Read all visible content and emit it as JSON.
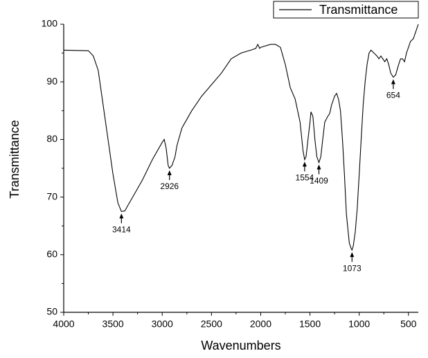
{
  "chart_data": {
    "type": "line",
    "xlabel": "Wavenumbers",
    "ylabel": "Transmittance",
    "xlim": [
      4000,
      400
    ],
    "ylim": [
      50,
      100
    ],
    "xticks": [
      4000,
      3500,
      3000,
      2500,
      2000,
      1500,
      1000,
      500
    ],
    "yticks": [
      50,
      60,
      70,
      80,
      90,
      100
    ],
    "legend": "top-right",
    "series": [
      {
        "name": "Transmittance",
        "color": "#000000",
        "x": [
          4000,
          3750,
          3700,
          3650,
          3600,
          3550,
          3500,
          3450,
          3414,
          3380,
          3350,
          3300,
          3200,
          3100,
          3000,
          2980,
          2960,
          2940,
          2926,
          2900,
          2870,
          2850,
          2800,
          2750,
          2700,
          2600,
          2500,
          2400,
          2300,
          2200,
          2100,
          2050,
          2030,
          2010,
          2000,
          1900,
          1850,
          1800,
          1750,
          1700,
          1650,
          1600,
          1570,
          1554,
          1540,
          1520,
          1500,
          1490,
          1470,
          1450,
          1430,
          1409,
          1390,
          1370,
          1350,
          1320,
          1300,
          1280,
          1250,
          1230,
          1210,
          1190,
          1170,
          1150,
          1130,
          1100,
          1080,
          1073,
          1060,
          1040,
          1020,
          1000,
          980,
          960,
          940,
          920,
          900,
          880,
          850,
          820,
          800,
          780,
          760,
          740,
          720,
          700,
          680,
          654,
          630,
          600,
          580,
          560,
          540,
          520,
          500,
          480,
          450,
          420,
          400
        ],
        "values": [
          95.5,
          95.4,
          94.5,
          92,
          86,
          80,
          74,
          69,
          67.5,
          67.6,
          68.5,
          70,
          73,
          76.5,
          79.5,
          80,
          78.5,
          75.5,
          75,
          75.5,
          77,
          79,
          82,
          83.5,
          85,
          87.5,
          89.5,
          91.5,
          94,
          95,
          95.5,
          95.8,
          96.5,
          95.8,
          96,
          96.5,
          96.5,
          96,
          93,
          89,
          87,
          83,
          78,
          76.5,
          77,
          80,
          83,
          84.8,
          84,
          80,
          77,
          76,
          77,
          80,
          83,
          84,
          84.5,
          86,
          87.5,
          88,
          87,
          85,
          80,
          74,
          67,
          62,
          61,
          60.8,
          61.5,
          64,
          68,
          74,
          80,
          86,
          90,
          93,
          95,
          95.5,
          95,
          94.5,
          94,
          94.5,
          94,
          93.5,
          94,
          93,
          91.5,
          90.8,
          91.2,
          93,
          94,
          94,
          93.5,
          95,
          96,
          97,
          97.5,
          99,
          100
        ]
      }
    ],
    "annotations": [
      3414,
      2926,
      1554,
      1409,
      1073,
      654
    ]
  }
}
